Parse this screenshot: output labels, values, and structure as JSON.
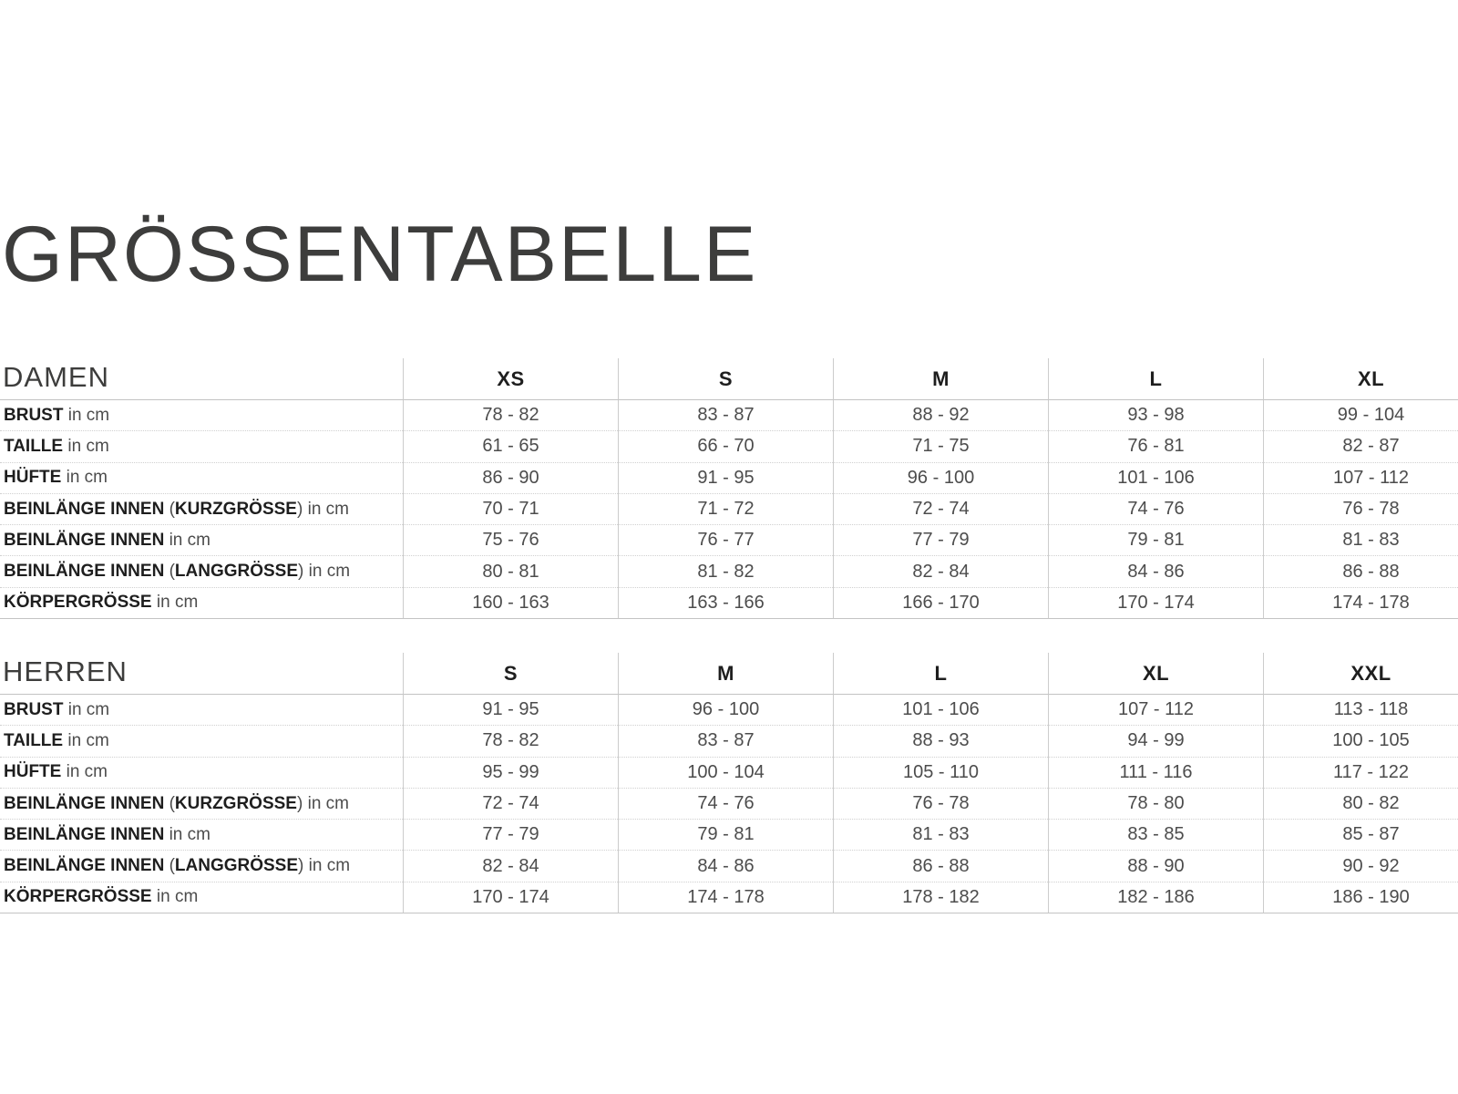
{
  "page": {
    "title": "GRÖSSENTABELLE"
  },
  "colors": {
    "title_text": "#3d3d3c",
    "bold_text": "#1e1e1e",
    "value_text": "#4c4c4c",
    "grid_vertical_line": "#cccccc",
    "grid_solid_line": "#c3c3c3",
    "grid_dotted_line": "#d0d0d0",
    "background": "#ffffff"
  },
  "tables": [
    {
      "section": "DAMEN",
      "sizes": [
        "XS",
        "S",
        "M",
        "L",
        "XL"
      ],
      "rows": [
        {
          "label": {
            "bold": "BRUST",
            "suffix": " in cm"
          },
          "values": [
            "78 - 82",
            "83 - 87",
            "88 - 92",
            "93 - 98",
            "99 - 104"
          ]
        },
        {
          "label": {
            "bold": "TAILLE",
            "suffix": " in cm"
          },
          "values": [
            "61 - 65",
            "66 - 70",
            "71 - 75",
            "76 - 81",
            "82 - 87"
          ]
        },
        {
          "label": {
            "bold": "HÜFTE",
            "suffix": " in cm"
          },
          "values": [
            "86 - 90",
            "91 - 95",
            "96 - 100",
            "101 - 106",
            "107 - 112"
          ]
        },
        {
          "label": {
            "bold": "BEINLÄNGE INNEN",
            "mid": " (",
            "bold2": "KURZGRÖSSE",
            "close": ")",
            "suffix": " in cm"
          },
          "values": [
            "70 - 71",
            "71 - 72",
            "72 - 74",
            "74 - 76",
            "76 - 78"
          ]
        },
        {
          "label": {
            "bold": "BEINLÄNGE INNEN",
            "suffix": " in cm"
          },
          "values": [
            "75 - 76",
            "76 - 77",
            "77 - 79",
            "79 - 81",
            "81 - 83"
          ]
        },
        {
          "label": {
            "bold": "BEINLÄNGE INNEN",
            "mid": " (",
            "bold2": "LANGGRÖSSE",
            "close": ")",
            "suffix": " in cm"
          },
          "values": [
            "80 - 81",
            "81 - 82",
            "82 - 84",
            "84 - 86",
            "86 - 88"
          ]
        },
        {
          "label": {
            "bold": "KÖRPERGRÖSSE",
            "suffix": " in cm"
          },
          "values": [
            "160 - 163",
            "163 - 166",
            "166 - 170",
            "170 - 174",
            "174 - 178"
          ]
        }
      ]
    },
    {
      "section": "HERREN",
      "sizes": [
        "S",
        "M",
        "L",
        "XL",
        "XXL"
      ],
      "rows": [
        {
          "label": {
            "bold": "BRUST",
            "suffix": " in cm"
          },
          "values": [
            "91 - 95",
            "96 - 100",
            "101 - 106",
            "107 - 112",
            "113 - 118"
          ]
        },
        {
          "label": {
            "bold": "TAILLE",
            "suffix": " in cm"
          },
          "values": [
            "78 - 82",
            "83 - 87",
            "88 - 93",
            "94 - 99",
            "100 - 105"
          ]
        },
        {
          "label": {
            "bold": "HÜFTE",
            "suffix": " in cm"
          },
          "values": [
            "95 - 99",
            "100 - 104",
            "105 - 110",
            "111 - 116",
            "117 - 122"
          ]
        },
        {
          "label": {
            "bold": "BEINLÄNGE INNEN",
            "mid": " (",
            "bold2": "KURZGRÖSSE",
            "close": ")",
            "suffix": " in cm"
          },
          "values": [
            "72 - 74",
            "74 - 76",
            "76 - 78",
            "78 - 80",
            "80 - 82"
          ]
        },
        {
          "label": {
            "bold": "BEINLÄNGE INNEN",
            "suffix": " in cm"
          },
          "values": [
            "77 - 79",
            "79 - 81",
            "81 - 83",
            "83 - 85",
            "85 - 87"
          ]
        },
        {
          "label": {
            "bold": "BEINLÄNGE INNEN",
            "mid": " (",
            "bold2": "LANGGRÖSSE",
            "close": ")",
            "suffix": " in cm"
          },
          "values": [
            "82 - 84",
            "84 - 86",
            "86 - 88",
            "88 - 90",
            "90 - 92"
          ]
        },
        {
          "label": {
            "bold": "KÖRPERGRÖSSE",
            "suffix": " in cm"
          },
          "values": [
            "170 - 174",
            "174 - 178",
            "178 - 182",
            "182 - 186",
            "186 - 190"
          ]
        }
      ]
    }
  ]
}
